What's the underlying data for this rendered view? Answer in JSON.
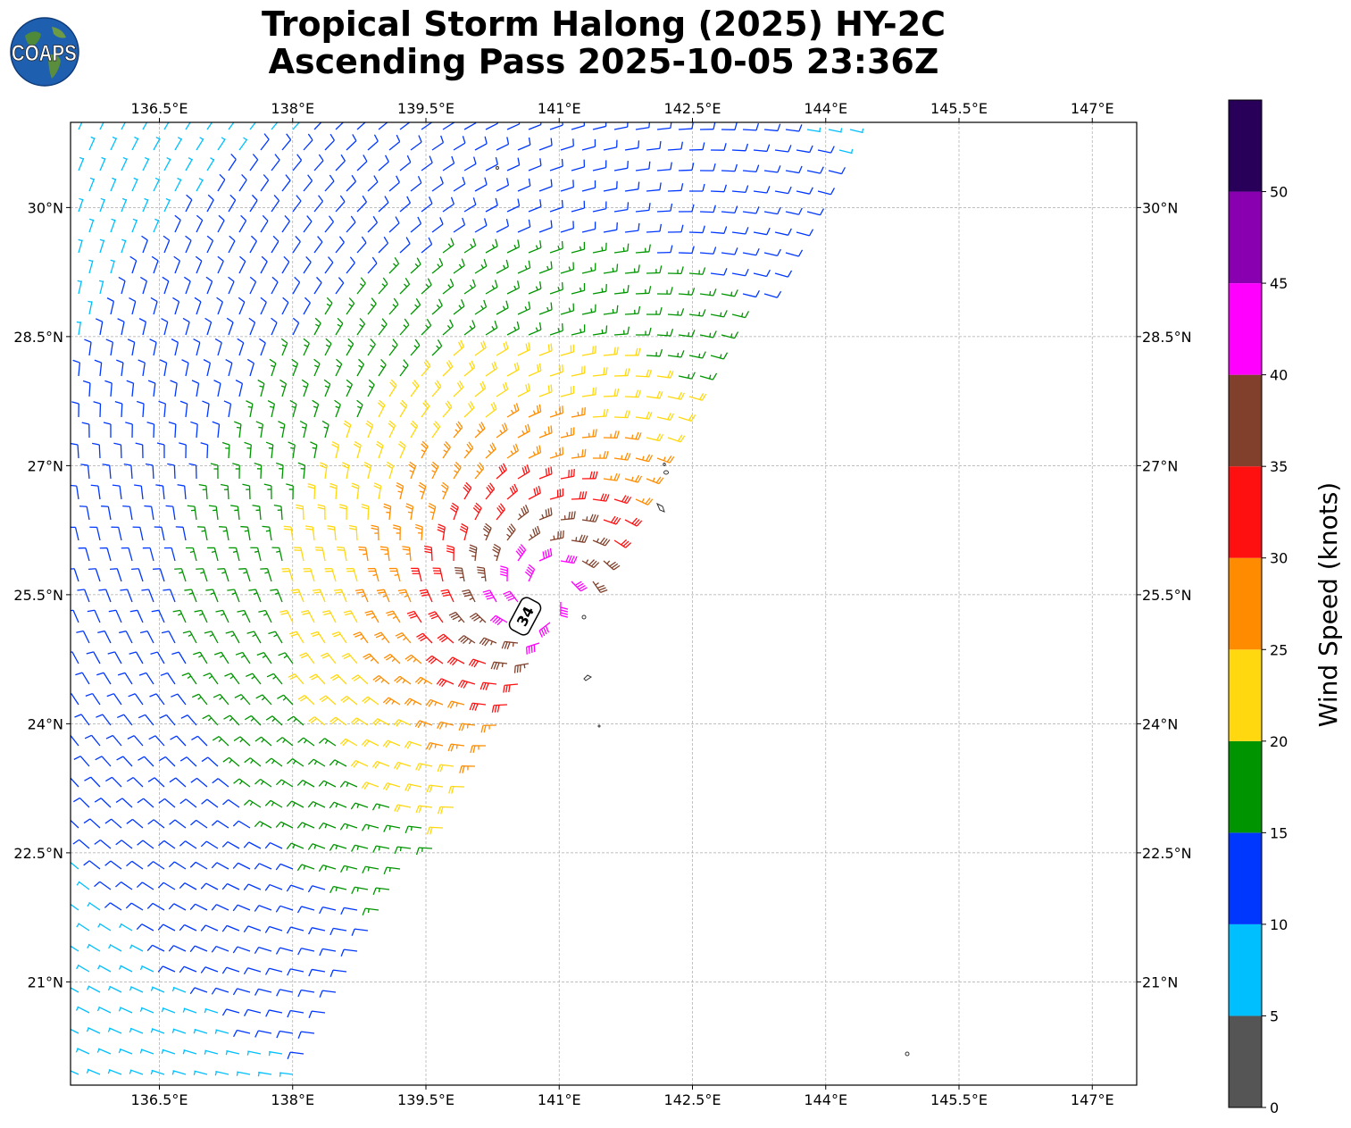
{
  "title": {
    "line1": "Tropical Storm Halong (2025) HY-2C",
    "line2": "Ascending Pass 2025-10-05 23:36Z"
  },
  "logo": {
    "text": "COAPS",
    "icon": "globe-icon"
  },
  "map": {
    "lon_range": [
      135.5,
      147.5
    ],
    "lat_range": [
      19.8,
      30.99
    ],
    "x_ticks": [
      "136.5°E",
      "138°E",
      "139.5°E",
      "141°E",
      "142.5°E",
      "144°E",
      "145.5°E",
      "147°E"
    ],
    "y_ticks": [
      "30°N",
      "28.5°N",
      "27°N",
      "25.5°N",
      "24°N",
      "22.5°N",
      "21°N"
    ],
    "grid": "dashed gray",
    "storm_center": {
      "lon": 140.8,
      "lat": 25.5
    },
    "storm_label": "34",
    "max_wind_region": "southeast of center, winds 30-40 knots",
    "swath": "diagonal swath west/northwest of a SW-NE edge; wind barbs colored by speed"
  },
  "colorbar": {
    "label": "Wind Speed (knots)",
    "ticks": [
      "0",
      "5",
      "10",
      "15",
      "20",
      "25",
      "30",
      "35",
      "40",
      "45",
      "50"
    ],
    "bins": [
      {
        "min": 0,
        "max": 5,
        "color": "#555555"
      },
      {
        "min": 5,
        "max": 10,
        "color": "#00bfff"
      },
      {
        "min": 10,
        "max": 15,
        "color": "#0037ff"
      },
      {
        "min": 15,
        "max": 20,
        "color": "#009400"
      },
      {
        "min": 20,
        "max": 25,
        "color": "#ffd80f"
      },
      {
        "min": 25,
        "max": 30,
        "color": "#ff8c00"
      },
      {
        "min": 30,
        "max": 35,
        "color": "#ff1010"
      },
      {
        "min": 35,
        "max": 40,
        "color": "#80402b"
      },
      {
        "min": 40,
        "max": 45,
        "color": "#ff00ff"
      },
      {
        "min": 45,
        "max": 50,
        "color": "#8800b0"
      },
      {
        "min": 50,
        "max": 55,
        "color": "#28005a"
      }
    ]
  }
}
